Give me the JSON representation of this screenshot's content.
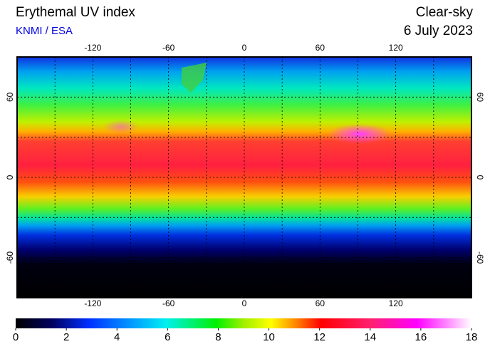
{
  "header": {
    "title": "Erythemal UV index",
    "source": "KNMI / ESA",
    "mode": "Clear-sky",
    "date": "6 July 2023"
  },
  "map": {
    "xlim": [
      -180,
      180
    ],
    "ylim": [
      -90,
      90
    ],
    "xticks": [
      -120,
      -60,
      0,
      60,
      120
    ],
    "yticks": [
      60,
      0,
      -60
    ]
  },
  "colorbar": {
    "lim": [
      0,
      18
    ],
    "ticks": [
      0,
      2,
      4,
      6,
      8,
      10,
      12,
      14,
      16,
      18
    ]
  }
}
